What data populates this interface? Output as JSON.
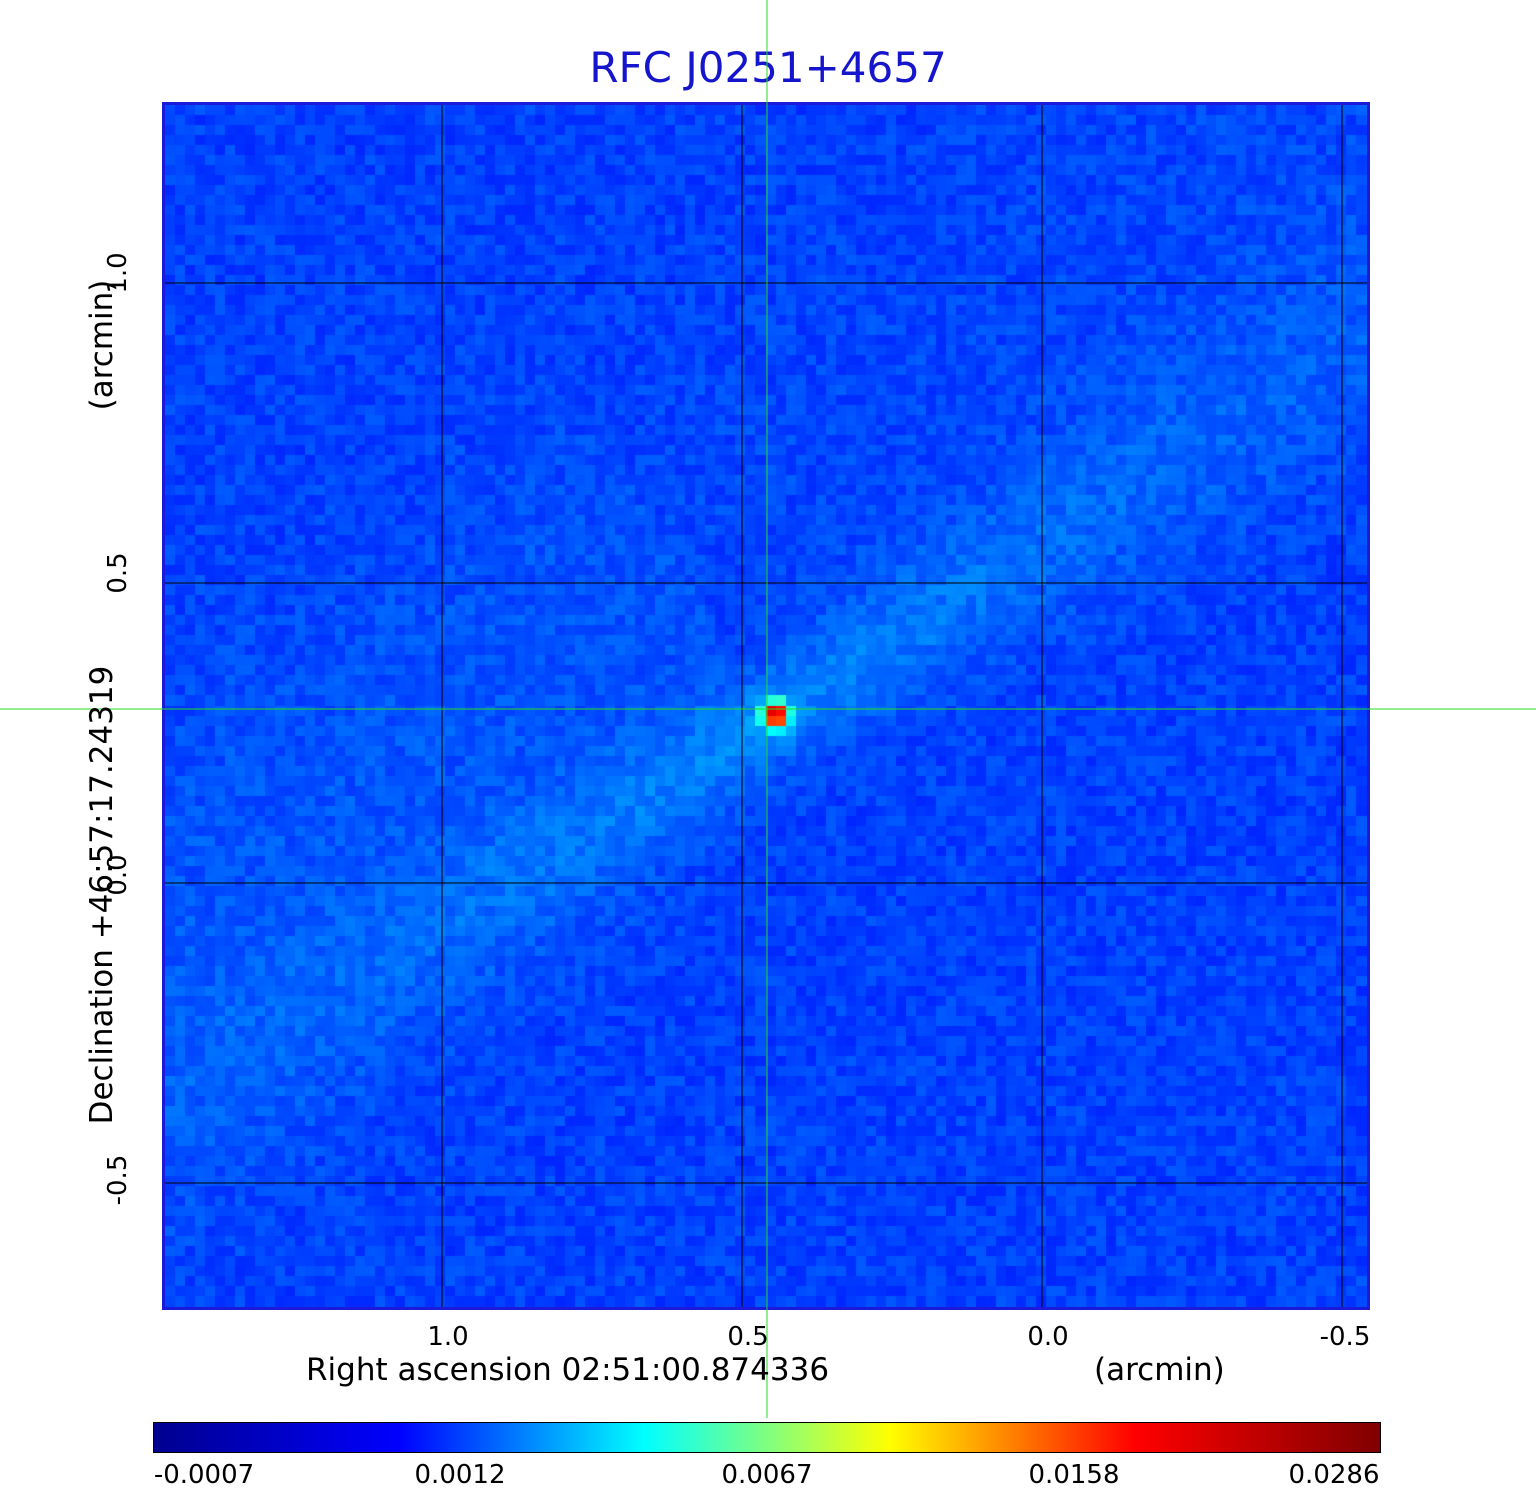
{
  "title": "RFC J0251+4657",
  "x_axis": {
    "label": "Right ascension  02:51:00.874336",
    "unit": "(arcmin)",
    "ticks": [
      "1.0",
      "0.5",
      "0.0",
      "-0.5"
    ]
  },
  "y_axis": {
    "label": "Declination  +46:57:17.24319",
    "unit": "(arcmin)",
    "ticks": [
      "1.0",
      "0.5",
      "0.0",
      "-0.5"
    ]
  },
  "colorbar": {
    "ticks": [
      "-0.0007",
      "0.0012",
      "0.0067",
      "0.0158",
      "0.0286"
    ],
    "colors": [
      "#00008f",
      "#0000ff",
      "#00ffff",
      "#ffff00",
      "#ff0000",
      "#800000"
    ]
  },
  "colors": {
    "title": "#1515cc",
    "frame": "#1a1ad8",
    "crosshair": "#00dd00",
    "grid": "#000000"
  }
}
